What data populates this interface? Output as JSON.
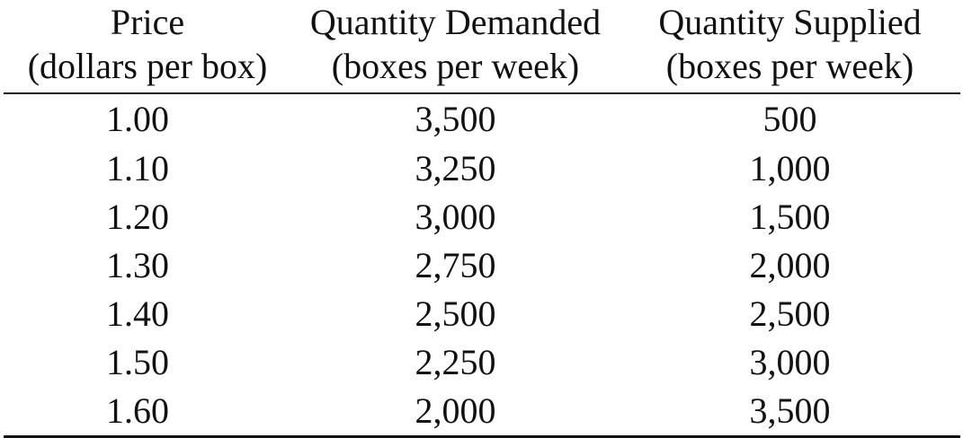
{
  "table": {
    "headers": [
      {
        "line1": "Price",
        "line2": "(dollars per box)"
      },
      {
        "line1": "Quantity Demanded",
        "line2": "(boxes per week)"
      },
      {
        "line1": "Quantity Supplied",
        "line2": "(boxes per week)"
      }
    ],
    "rows": [
      {
        "price": "1.00",
        "qd": "3,500",
        "qs": "500"
      },
      {
        "price": "1.10",
        "qd": "3,250",
        "qs": "1,000"
      },
      {
        "price": "1.20",
        "qd": "3,000",
        "qs": "1,500"
      },
      {
        "price": "1.30",
        "qd": "2,750",
        "qs": "2,000"
      },
      {
        "price": "1.40",
        "qd": "2,500",
        "qs": "2,500"
      },
      {
        "price": "1.50",
        "qd": "2,250",
        "qs": "3,000"
      },
      {
        "price": "1.60",
        "qd": "2,000",
        "qs": "3,500"
      }
    ]
  }
}
